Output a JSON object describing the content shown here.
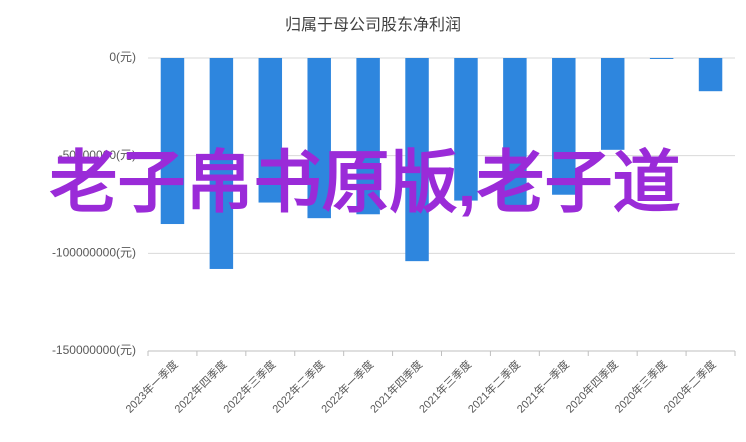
{
  "chart_data": {
    "type": "bar",
    "title": "归属于母公司股东净利润",
    "categories": [
      "2023年一季度",
      "2022年四季度",
      "2022年三季度",
      "2022年二季度",
      "2022年一季度",
      "2021年四季度",
      "2021年三季度",
      "2021年二季度",
      "2021年一季度",
      "2020年四季度",
      "2020年三季度",
      "2020年二季度"
    ],
    "values": [
      -85000000,
      -108000000,
      -74000000,
      -82000000,
      -80000000,
      -104000000,
      -73000000,
      -78000000,
      -70000000,
      -47000000,
      -500000,
      -17000000
    ],
    "color": "#2e86de",
    "ylim": [
      -150000000,
      0
    ],
    "yticks": [
      {
        "value": 0,
        "label": "0(元)"
      },
      {
        "value": -50000000,
        "label": "-50000000(元)"
      },
      {
        "value": -100000000,
        "label": "-100000000(元)"
      },
      {
        "value": -150000000,
        "label": "-150000000(元)"
      }
    ],
    "grid": true,
    "annotation": "老子帛书原版,老子道"
  }
}
